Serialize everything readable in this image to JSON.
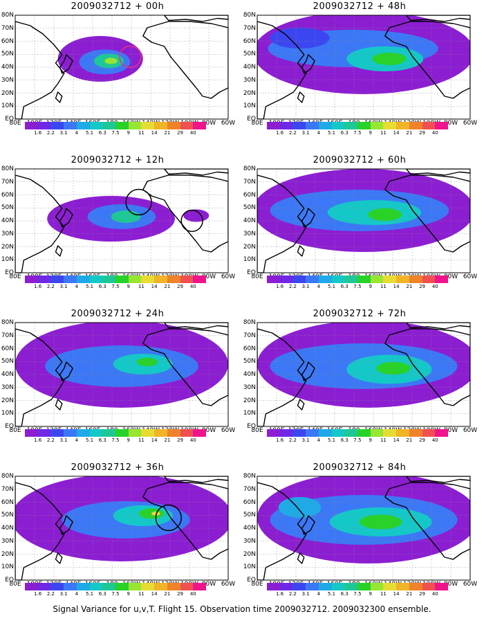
{
  "panels": [
    {
      "title": "2009032712 + 00h"
    },
    {
      "title": "2009032712 + 48h"
    },
    {
      "title": "2009032712 + 12h"
    },
    {
      "title": "2009032712 + 60h"
    },
    {
      "title": "2009032712 + 24h"
    },
    {
      "title": "2009032712 + 72h"
    },
    {
      "title": "2009032712 + 36h"
    },
    {
      "title": "2009032712 + 84h"
    }
  ],
  "axes": {
    "lat_labels": [
      "80N",
      "70N",
      "60N",
      "50N",
      "40N",
      "30N",
      "20N",
      "10N",
      "EQ"
    ],
    "lon_labels": [
      "80E",
      "100E",
      "120E",
      "140E",
      "160E",
      "180",
      "160W",
      "140W",
      "120W",
      "100W",
      "80W",
      "60W"
    ]
  },
  "colorbar": {
    "colors": [
      "#8c1ed2",
      "#6e28e6",
      "#3c46f0",
      "#3c78f5",
      "#1eaae6",
      "#14c8c8",
      "#1ec896",
      "#28d228",
      "#96e632",
      "#e6dc32",
      "#f0b428",
      "#f08228",
      "#f05050",
      "#f0148c"
    ],
    "labels": [
      "1.6",
      "2.2",
      "3.1",
      "4",
      "5.1",
      "6.3",
      "7.5",
      "9",
      "11",
      "14",
      "21",
      "29",
      "40"
    ]
  },
  "caption": "Signal Variance for u,v,T. Flight 15. Observation time 2009032712. 2009032300 ensemble."
}
